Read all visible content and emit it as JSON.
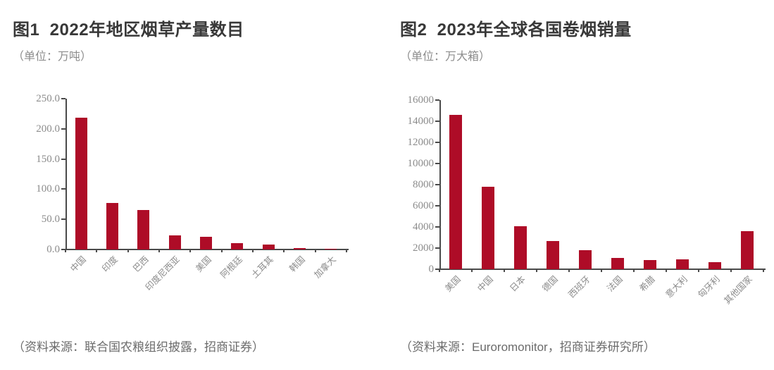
{
  "colors": {
    "background": "#ffffff",
    "bar": "#ae0c27",
    "axis": "#4a4a4a",
    "title_text": "#383838",
    "muted_text": "#8c8c8c",
    "tick_text": "#8c8c8c",
    "source_text": "#6b6b6b"
  },
  "chart_data": [
    {
      "type": "bar",
      "title": "图1  2022年地区烟草产量数目",
      "subtitle": "（单位：万吨）",
      "source": "（资料来源：联合国农粮组织披露，招商证券）",
      "categories": [
        "中国",
        "印度",
        "巴西",
        "印度尼西亚",
        "美国",
        "阿根廷",
        "土耳其",
        "韩国",
        "加拿大"
      ],
      "values": [
        218,
        77,
        65,
        23,
        21,
        10,
        8,
        2.5,
        1.5
      ],
      "xlabel": "",
      "ylabel": "",
      "ylim": [
        0,
        250
      ],
      "ytick_labels": [
        "0.0",
        "50.0",
        "100.0",
        "150.0",
        "200.0",
        "250.0"
      ],
      "grid": false,
      "legend": "none"
    },
    {
      "type": "bar",
      "title": "图2  2023年全球各国卷烟销量",
      "subtitle": "（单位：万大箱）",
      "source": "（资料来源：Euroromonitor，招商证券研究所）",
      "categories": [
        "美国",
        "中国",
        "日本",
        "德国",
        "西班牙",
        "法国",
        "希腊",
        "意大利",
        "匈牙利",
        "其他国家"
      ],
      "values": [
        14600,
        7800,
        4100,
        2700,
        1800,
        1100,
        900,
        950,
        700,
        3600
      ],
      "xlabel": "",
      "ylabel": "",
      "ylim": [
        0,
        16000
      ],
      "ytick_labels": [
        "0",
        "2000",
        "4000",
        "6000",
        "8000",
        "10000",
        "12000",
        "14000",
        "16000"
      ],
      "grid": false,
      "legend": "none"
    }
  ]
}
